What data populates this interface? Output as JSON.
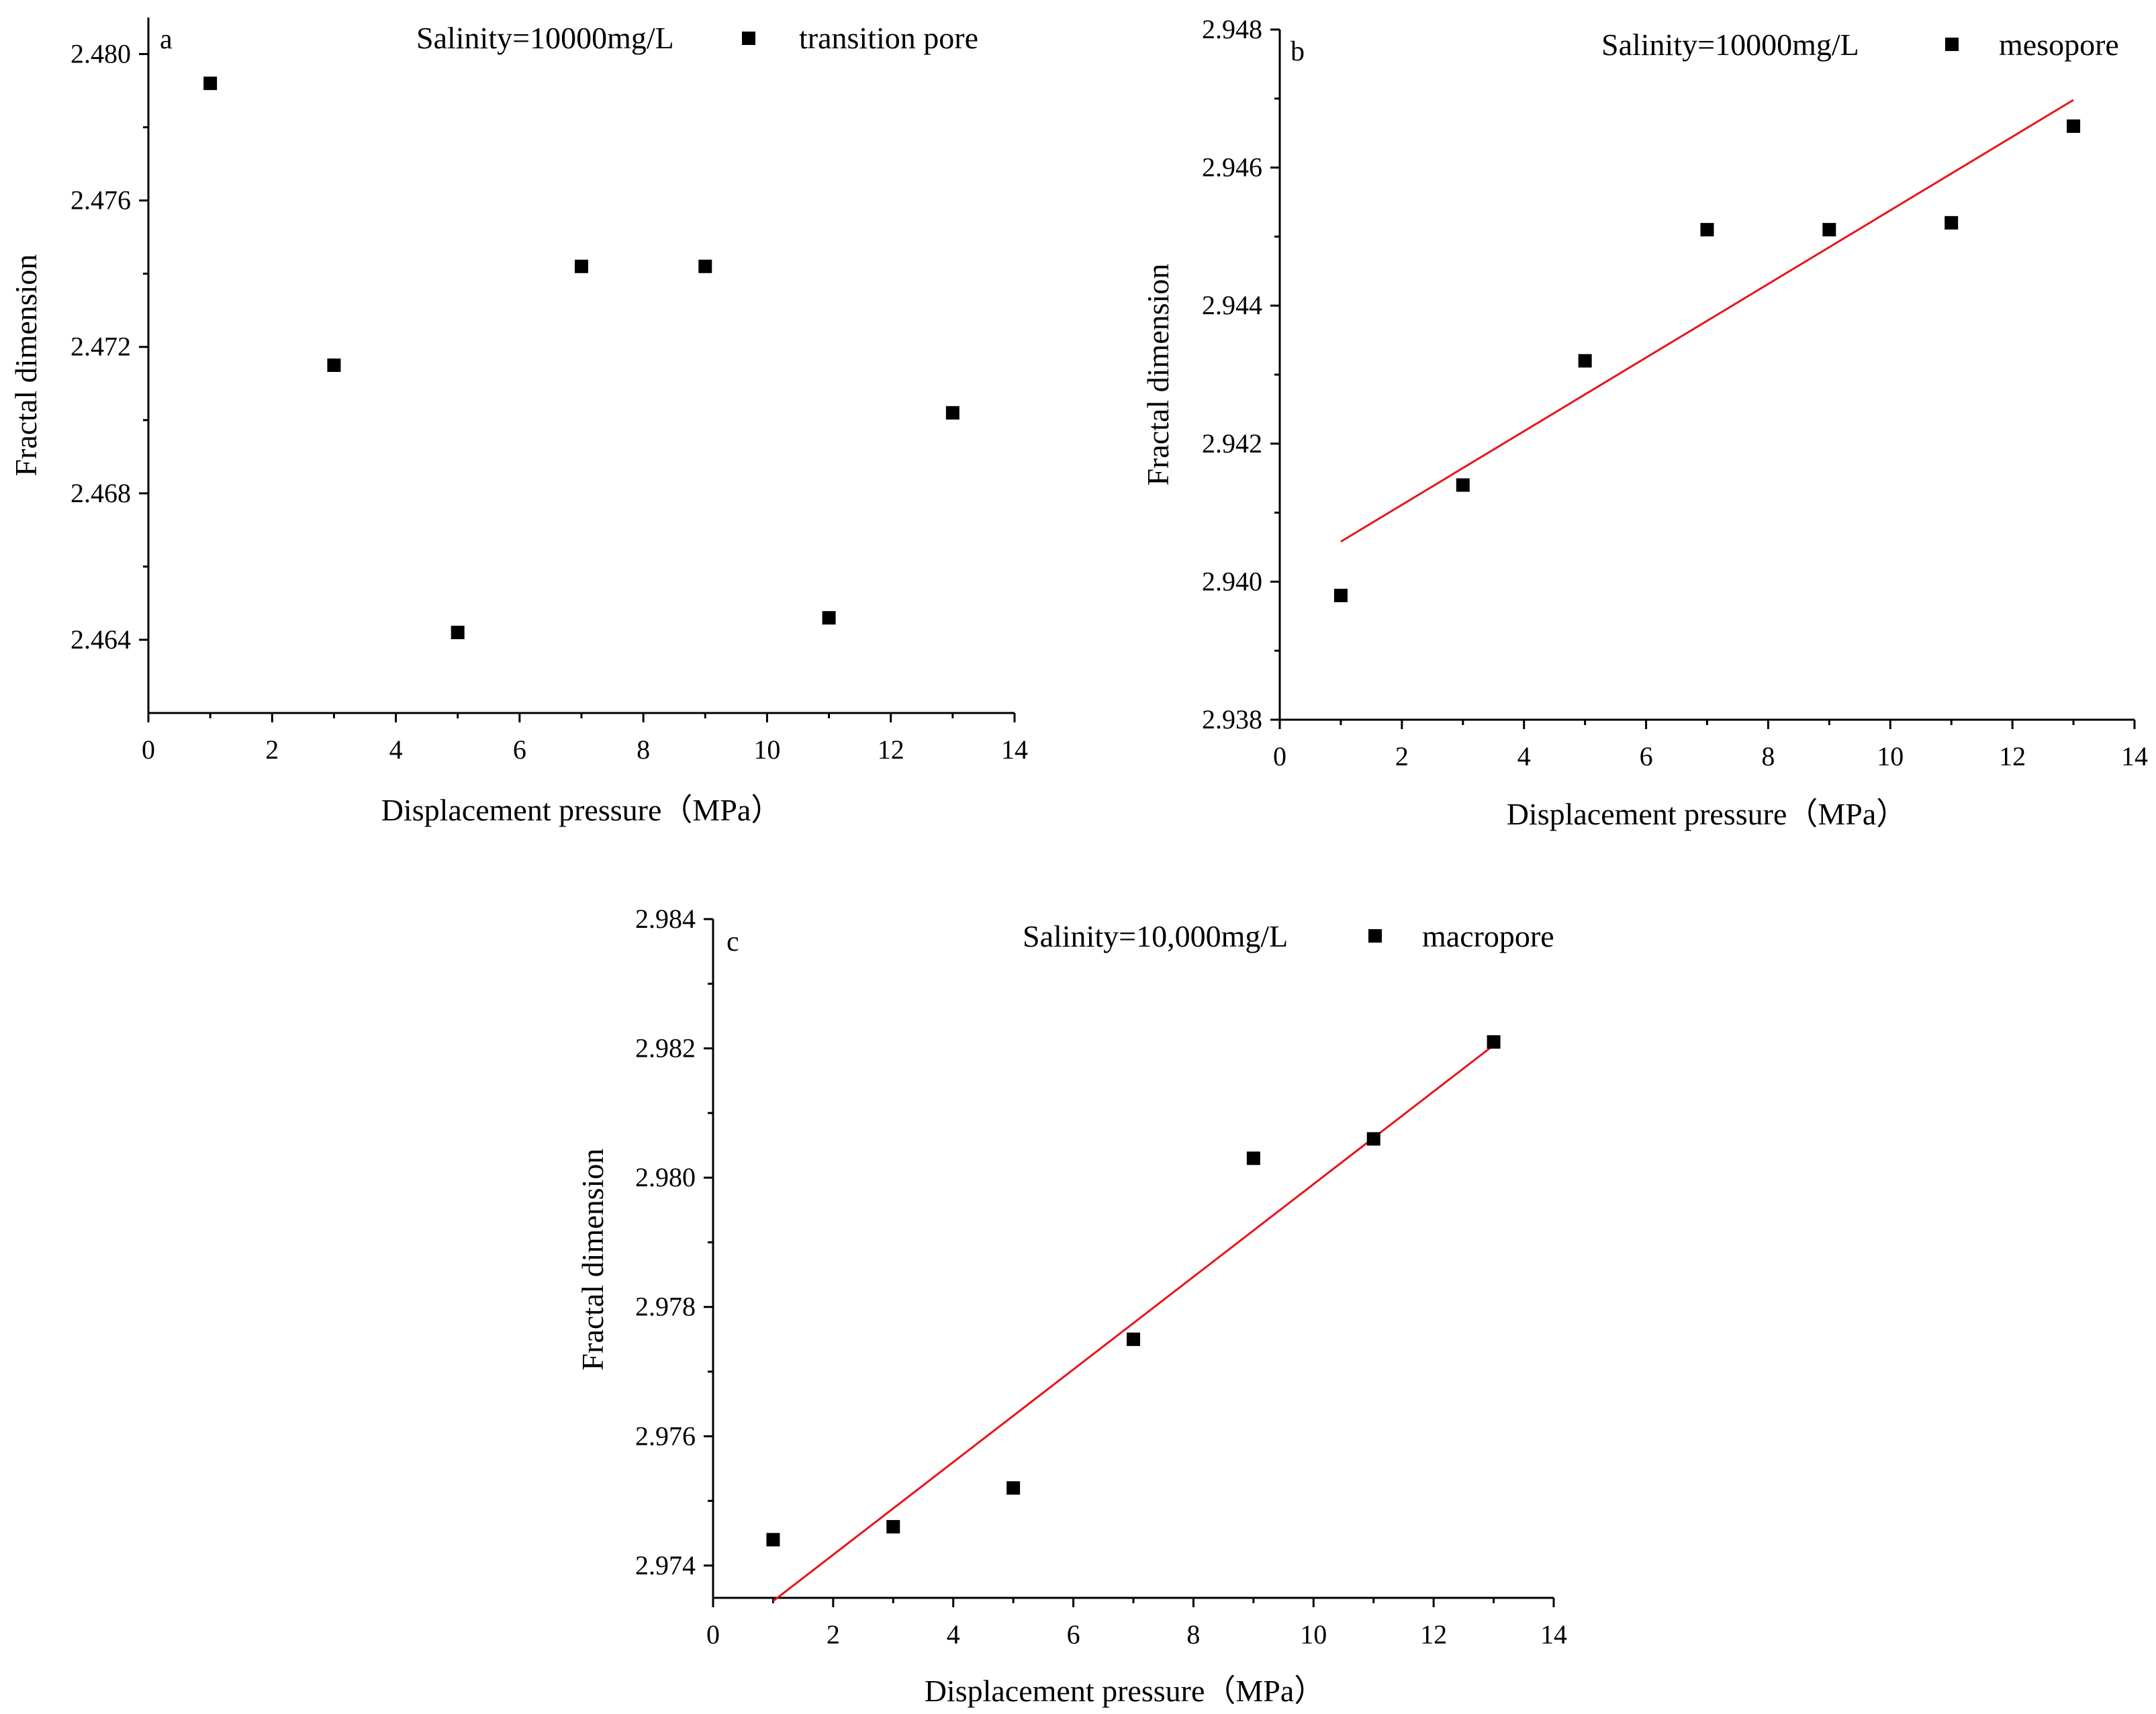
{
  "chart_data": [
    {
      "panel": "a",
      "type": "scatter",
      "legend_text": "Salinity=10000mg/L",
      "legend_series": "transition pore",
      "xlabel": "Displacement pressure（MPa）",
      "ylabel": "Fractal dimension",
      "xlim": [
        0,
        14
      ],
      "ylim": [
        2.462,
        2.481
      ],
      "xticks": [
        0,
        2,
        4,
        6,
        8,
        10,
        12,
        14
      ],
      "yticks": [
        2.464,
        2.468,
        2.472,
        2.476,
        2.48
      ],
      "ytick_labels": [
        "2.464",
        "2.468",
        "2.472",
        "2.476",
        "2.480"
      ],
      "x": [
        1,
        3,
        5,
        7,
        9,
        11,
        13
      ],
      "y": [
        2.4792,
        2.4715,
        2.4642,
        2.4742,
        2.4742,
        2.4646,
        2.4702
      ],
      "fit": null
    },
    {
      "panel": "b",
      "type": "scatter",
      "legend_text": "Salinity=10000mg/L",
      "legend_series": "mesopore",
      "xlabel": "Displacement pressure（MPa）",
      "ylabel": "Fractal dimension",
      "xlim": [
        0,
        14
      ],
      "ylim": [
        2.938,
        2.948
      ],
      "xticks": [
        0,
        2,
        4,
        6,
        8,
        10,
        12,
        14
      ],
      "yticks": [
        2.938,
        2.94,
        2.942,
        2.944,
        2.946,
        2.948
      ],
      "ytick_labels": [
        "2.938",
        "2.940",
        "2.942",
        "2.944",
        "2.946",
        "2.948"
      ],
      "x": [
        1,
        3,
        5,
        7,
        9,
        11,
        13
      ],
      "y": [
        2.9398,
        2.9414,
        2.9432,
        2.9451,
        2.9451,
        2.9452,
        2.9466
      ],
      "fit": {
        "x": [
          1,
          13
        ],
        "y": [
          2.94058,
          2.94698
        ],
        "color": "#e8151b"
      }
    },
    {
      "panel": "c",
      "type": "scatter",
      "legend_text": "Salinity=10,000mg/L",
      "legend_series": "macropore",
      "xlabel": "Displacement pressure（MPa）",
      "ylabel": "Fractal dimension",
      "xlim": [
        0,
        14
      ],
      "ylim": [
        2.9735,
        2.984
      ],
      "xticks": [
        0,
        2,
        4,
        6,
        8,
        10,
        12,
        14
      ],
      "yticks": [
        2.974,
        2.976,
        2.978,
        2.98,
        2.982,
        2.984
      ],
      "ytick_labels": [
        "2.974",
        "2.976",
        "2.978",
        "2.980",
        "2.982",
        "2.984"
      ],
      "x": [
        1,
        3,
        5,
        7,
        9,
        11,
        13
      ],
      "y": [
        2.9744,
        2.9746,
        2.9752,
        2.9775,
        2.9803,
        2.9806,
        2.9821
      ],
      "fit": {
        "x": [
          1,
          13
        ],
        "y": [
          2.97345,
          2.98205
        ],
        "color": "#e8151b"
      }
    }
  ]
}
